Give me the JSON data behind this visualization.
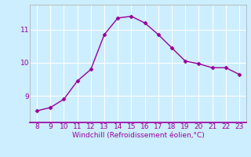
{
  "x": [
    8,
    9,
    10,
    11,
    12,
    13,
    14,
    15,
    16,
    17,
    18,
    19,
    20,
    21,
    22,
    23
  ],
  "y": [
    8.55,
    8.65,
    8.9,
    9.45,
    9.8,
    10.85,
    11.35,
    11.4,
    11.2,
    10.85,
    10.45,
    10.05,
    9.97,
    9.85,
    9.85,
    9.65
  ],
  "line_color": "#990099",
  "marker": "D",
  "marker_size": 2.5,
  "bg_color": "#cceeff",
  "grid_color": "#ffffff",
  "xlabel": "Windchill (Refroidissement éolien,°C)",
  "xlabel_color": "#990099",
  "tick_color": "#990099",
  "label_color": "#990099",
  "yticks": [
    9,
    10,
    11
  ],
  "xticks": [
    8,
    9,
    10,
    11,
    12,
    13,
    14,
    15,
    16,
    17,
    18,
    19,
    20,
    21,
    22,
    23
  ],
  "xlim": [
    7.5,
    23.5
  ],
  "ylim": [
    8.2,
    11.75
  ],
  "bottom_spine_color": "#990099",
  "other_spine_color": "#aaaaaa"
}
